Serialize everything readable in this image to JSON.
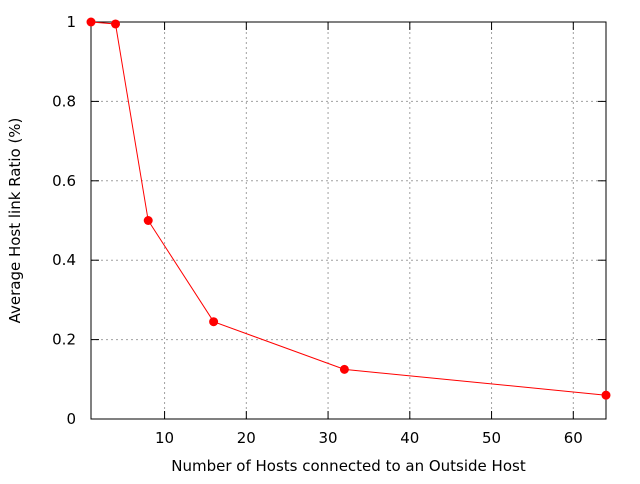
{
  "chart_data": {
    "type": "line",
    "title": "",
    "xlabel": "Number of Hosts connected to an Outside Host",
    "ylabel": "Average Host link Ratio (%)",
    "xlim": [
      1,
      64
    ],
    "ylim": [
      0,
      1
    ],
    "x_ticks": [
      10,
      20,
      30,
      40,
      50,
      60
    ],
    "x_tick_labels": [
      "10",
      "20",
      "30",
      "40",
      "50",
      "60"
    ],
    "y_ticks": [
      0,
      0.2,
      0.4,
      0.6,
      0.8,
      1
    ],
    "y_tick_labels": [
      "0",
      "0.2",
      "0.4",
      "0.6",
      "0.8",
      "1"
    ],
    "grid": true,
    "legend": "none",
    "series": [
      {
        "x": [
          1,
          4,
          8,
          16,
          32,
          64
        ],
        "values": [
          1.0,
          0.995,
          0.5,
          0.245,
          0.125,
          0.06
        ],
        "color": "#ff0000",
        "marker_color": "#ff0000"
      }
    ]
  }
}
